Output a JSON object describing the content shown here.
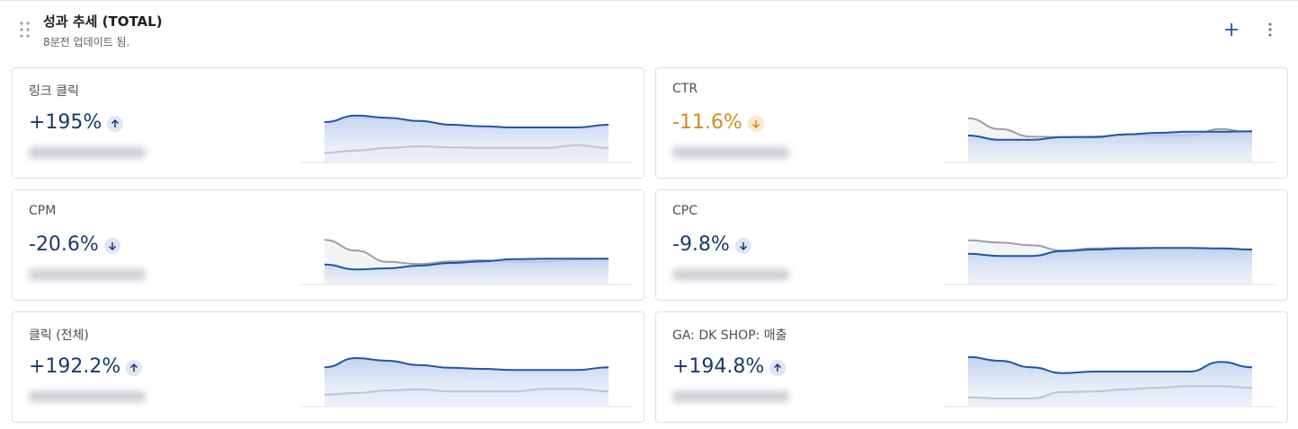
{
  "header": {
    "title": "성과 추세 (TOTAL)",
    "subtitle": "8분전 업데이트 됨."
  },
  "cards": [
    {
      "label": "링크 클릭",
      "change": "+195%",
      "direction": "up",
      "color": "#1a3a6b",
      "ylim": [
        0,
        100
      ],
      "series": [
        {
          "color": "#1f56a8",
          "values": [
            75,
            87,
            83,
            77,
            70,
            67,
            65,
            65,
            65,
            70
          ]
        },
        {
          "color": "#9a9ea6",
          "values": [
            18,
            22,
            27,
            30,
            28,
            27,
            27,
            27,
            32,
            27
          ]
        }
      ]
    },
    {
      "label": "CTR",
      "change": "-11.6%",
      "direction": "down",
      "color": "#d98a1c",
      "ylim": [
        0,
        100
      ],
      "series": [
        {
          "color": "#1f56a8",
          "values": [
            50,
            42,
            42,
            47,
            47,
            52,
            55,
            57,
            57,
            58
          ]
        },
        {
          "color": "#9a9ea6",
          "values": [
            82,
            62,
            48,
            47,
            48,
            52,
            50,
            50,
            62,
            55
          ]
        }
      ]
    },
    {
      "label": "CPM",
      "change": "-20.6%",
      "direction": "down",
      "color": "#1a3a6b",
      "ylim": [
        0,
        100
      ],
      "series": [
        {
          "color": "#1f56a8",
          "values": [
            37,
            28,
            30,
            35,
            40,
            43,
            47,
            48,
            48,
            48
          ]
        },
        {
          "color": "#9a9ea6",
          "values": [
            83,
            63,
            42,
            38,
            43,
            45,
            42,
            42,
            47,
            47
          ]
        }
      ]
    },
    {
      "label": "CPC",
      "change": "-9.8%",
      "direction": "down",
      "color": "#1a3a6b",
      "ylim": [
        0,
        100
      ],
      "series": [
        {
          "color": "#1f56a8",
          "values": [
            57,
            53,
            53,
            62,
            65,
            67,
            68,
            68,
            67,
            65
          ]
        },
        {
          "color": "#9a9ea6",
          "values": [
            82,
            78,
            73,
            63,
            67,
            68,
            68,
            67,
            65,
            65
          ]
        }
      ]
    },
    {
      "label": "클릭 (전체)",
      "change": "+192.2%",
      "direction": "up",
      "color": "#1a3a6b",
      "ylim": [
        0,
        100
      ],
      "series": [
        {
          "color": "#1f56a8",
          "values": [
            73,
            90,
            85,
            77,
            72,
            70,
            68,
            68,
            68,
            73
          ]
        },
        {
          "color": "#9a9ea6",
          "values": [
            22,
            25,
            30,
            32,
            28,
            28,
            28,
            33,
            33,
            28
          ]
        }
      ]
    },
    {
      "label": "GA: DK SHOP: 매출",
      "change": "+194.8%",
      "direction": "up",
      "color": "#1a3a6b",
      "ylim": [
        0,
        100
      ],
      "series": [
        {
          "color": "#1f56a8",
          "values": [
            92,
            85,
            73,
            62,
            65,
            65,
            65,
            65,
            83,
            73
          ]
        },
        {
          "color": "#9a9ea6",
          "values": [
            17,
            15,
            15,
            27,
            28,
            32,
            35,
            38,
            38,
            35
          ]
        }
      ]
    }
  ]
}
